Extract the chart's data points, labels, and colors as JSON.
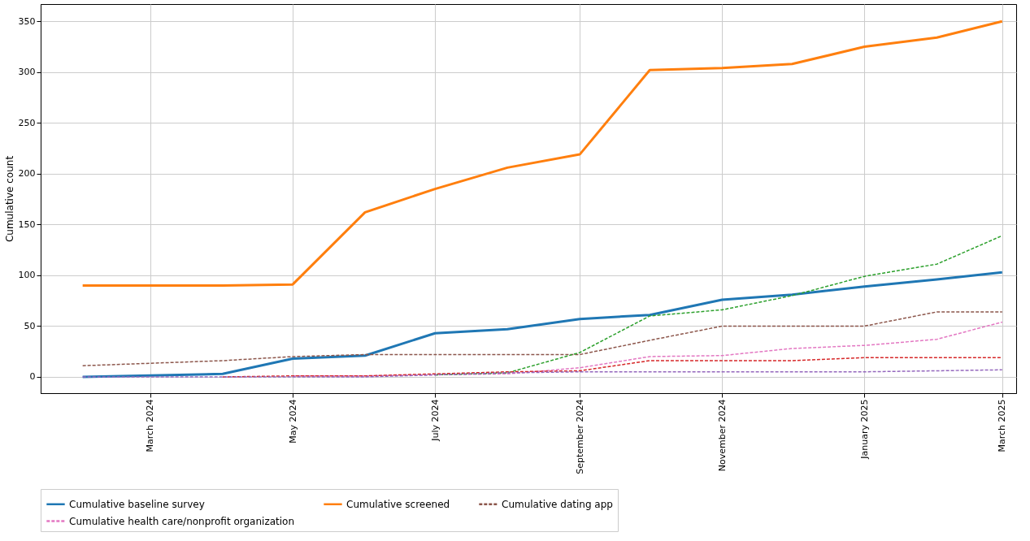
{
  "chart_data": {
    "type": "line",
    "ylabel": "Cumulative count",
    "x": [
      "2024-02-01",
      "2024-04-01",
      "2024-05-01",
      "2024-06-01",
      "2024-07-01",
      "2024-08-01",
      "2024-09-01",
      "2024-10-01",
      "2024-11-01",
      "2024-12-01",
      "2025-01-01",
      "2025-02-01",
      "2025-03-01"
    ],
    "series": [
      {
        "name": "Cumulative baseline survey",
        "color": "#1f77b4",
        "line_style": "solid",
        "values": [
          0,
          3,
          18,
          21,
          43,
          47,
          57,
          61,
          76,
          81,
          89,
          96,
          103
        ]
      },
      {
        "name": "Cumulative screened",
        "color": "#ff7f0e",
        "line_style": "solid",
        "values": [
          90,
          90,
          91,
          162,
          185,
          206,
          219,
          302,
          304,
          308,
          325,
          334,
          350
        ]
      },
      {
        "color": "#2ca02c",
        "line_style": "dashed",
        "values": [
          null,
          null,
          null,
          null,
          2,
          4,
          24,
          60,
          66,
          80,
          99,
          111,
          139
        ]
      },
      {
        "color": "#d62728",
        "line_style": "dashed",
        "values": [
          null,
          0,
          1,
          1,
          3,
          5,
          6,
          16,
          16,
          16,
          19,
          19,
          19
        ]
      },
      {
        "color": "#9467bd",
        "line_style": "dashed",
        "values": [
          0,
          0,
          0,
          0,
          2,
          4,
          5,
          5,
          5,
          5,
          5,
          6,
          7
        ]
      },
      {
        "name": "Cumulative dating app",
        "color": "#8c564b",
        "line_style": "dashed",
        "values": [
          11,
          16,
          20,
          22,
          22,
          22,
          22,
          36,
          50,
          50,
          50,
          64,
          64
        ]
      },
      {
        "name": "Cumulative health care/nonprofit organization",
        "color": "#e377c2",
        "line_style": "dashed",
        "values": [
          null,
          null,
          1,
          1,
          2,
          3,
          9,
          20,
          21,
          28,
          31,
          37,
          54
        ]
      }
    ],
    "xlim": [
      "2024-01-14",
      "2025-03-07"
    ],
    "xticks": [
      {
        "value": "2024-03-01",
        "label": "March 2024"
      },
      {
        "value": "2024-05-01",
        "label": "May 2024"
      },
      {
        "value": "2024-07-01",
        "label": "July 2024"
      },
      {
        "value": "2024-09-01",
        "label": "September 2024"
      },
      {
        "value": "2024-11-01",
        "label": "November 2024"
      },
      {
        "value": "2025-01-01",
        "label": "January 2025"
      },
      {
        "value": "2025-03-01",
        "label": "March 2025"
      }
    ],
    "ylim": [
      -16,
      367
    ],
    "yticks": [
      0,
      50,
      100,
      150,
      200,
      250,
      300,
      350
    ],
    "grid": true,
    "legend": "bottom"
  }
}
